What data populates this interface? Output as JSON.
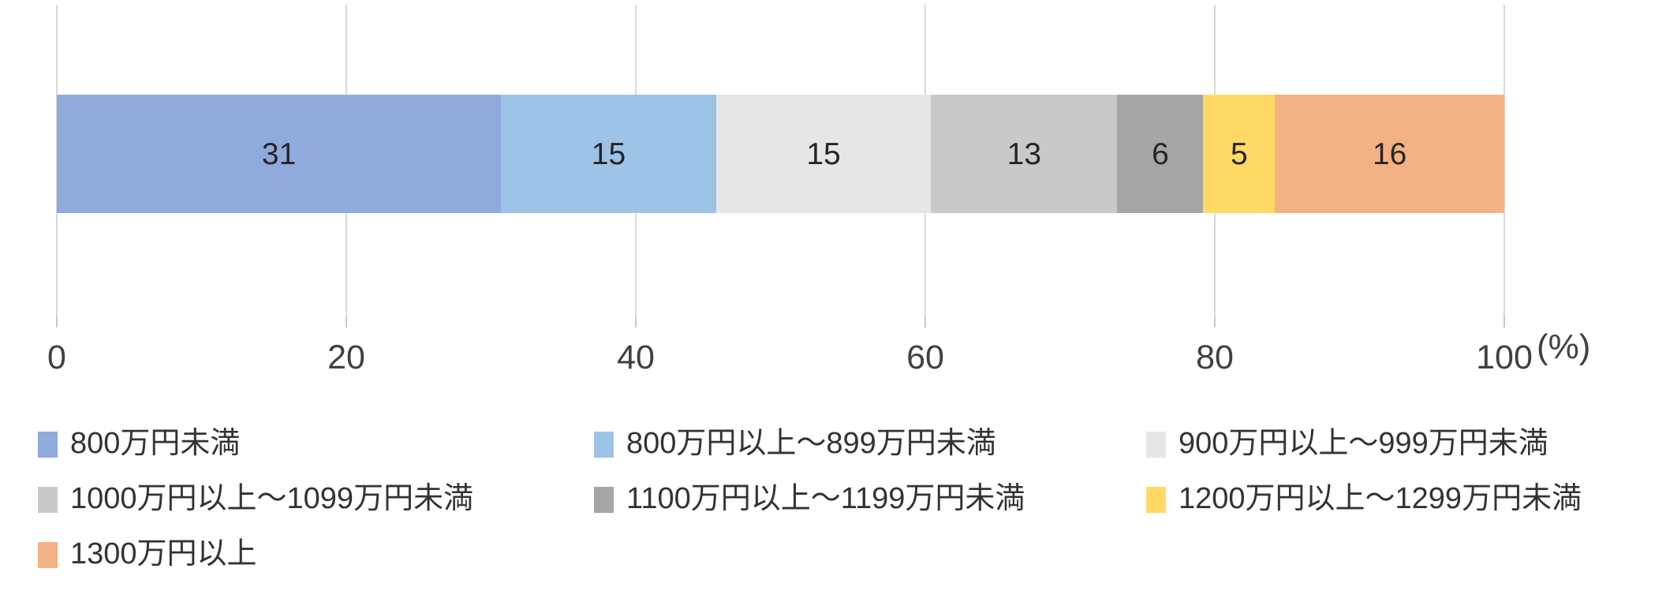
{
  "chart_data": {
    "type": "bar",
    "orientation": "horizontal",
    "stacked": true,
    "title": "",
    "xlabel": "",
    "ylabel": "",
    "unit_label": "(%)",
    "xlim": [
      0,
      100
    ],
    "x_ticks": [
      0,
      20,
      40,
      60,
      80,
      100
    ],
    "grid": true,
    "legend_position": "bottom",
    "categories": [
      ""
    ],
    "series": [
      {
        "name": "800万円未満",
        "values": [
          31
        ],
        "color": "#8FAADC"
      },
      {
        "name": "800万円以上～899万円未満",
        "values": [
          15
        ],
        "color": "#9DC3E6"
      },
      {
        "name": "900万円以上～999万円未満",
        "values": [
          15
        ],
        "color": "#E7E6E6"
      },
      {
        "name": "1000万円以上～1099万円未満",
        "values": [
          13
        ],
        "color": "#C9C9C9"
      },
      {
        "name": "1100万円以上～1199万円未満",
        "values": [
          6
        ],
        "color": "#A6A6A6"
      },
      {
        "name": "1200万円以上～1299万円未満",
        "values": [
          5
        ],
        "color": "#FFD966"
      },
      {
        "name": "1300万円以上",
        "values": [
          16
        ],
        "color": "#F4B183"
      }
    ]
  },
  "colors": {
    "gridline": "#D9D9D9",
    "tick": "#C9C9C9",
    "axis_text": "#404040",
    "bar_label_text": "#262626",
    "background": "#FFFFFF"
  }
}
